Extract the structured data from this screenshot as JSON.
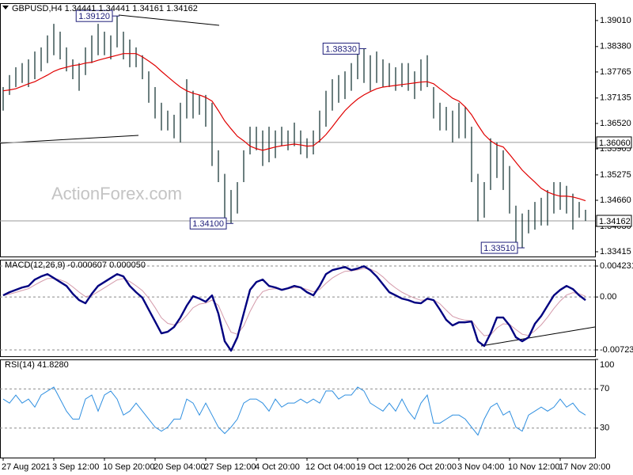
{
  "chart_data": [
    {
      "type": "ohlc",
      "title": "GBPUSD,H4 1.34441 1.34441 1.34161 1.34162",
      "watermark": "ActionForex.com",
      "color": "#0b2a2a",
      "categories": [
        "27 Aug 2021",
        null,
        null,
        null,
        null,
        null,
        null,
        null,
        "3 Sep 12:00",
        null,
        null,
        null,
        null,
        null,
        null,
        null,
        "10 Sep 20:00",
        null,
        null,
        null,
        null,
        null,
        null,
        null,
        "20 Sep 04:00",
        null,
        null,
        null,
        null,
        null,
        null,
        null,
        "27 Sep 12:00",
        null,
        null,
        null,
        null,
        null,
        null,
        null,
        "4 Oct 20:00",
        null,
        null,
        null,
        null,
        null,
        null,
        null,
        "12 Oct 04:00",
        null,
        null,
        null,
        null,
        null,
        null,
        null,
        "19 Oct 12:00",
        null,
        null,
        null,
        null,
        null,
        null,
        null,
        "26 Oct 20:00",
        null,
        null,
        null,
        null,
        null,
        null,
        null,
        "3 Nov 04:00",
        null,
        null,
        null,
        null,
        null,
        null,
        null,
        "10 Nov 12:00",
        null,
        null,
        null,
        null,
        null,
        null,
        null,
        "17 Nov 20:00",
        null,
        null,
        null,
        null
      ],
      "high": [
        1.374,
        1.3769,
        1.3788,
        1.3798,
        1.3807,
        1.3826,
        1.3836,
        1.3865,
        1.3893,
        1.3874,
        1.3836,
        1.3807,
        1.3798,
        1.3836,
        1.3865,
        1.3893,
        1.3874,
        1.3865,
        1.3912,
        1.3874,
        1.3855,
        1.3836,
        1.3817,
        1.3778,
        1.374,
        1.3702,
        1.3683,
        1.3673,
        1.3702,
        1.3759,
        1.3731,
        1.3721,
        1.3721,
        1.3702,
        1.3587,
        1.353,
        1.3491,
        1.351,
        1.3587,
        1.3644,
        1.3644,
        1.3635,
        1.3644,
        1.3635,
        1.3644,
        1.3635,
        1.3654,
        1.3635,
        1.3616,
        1.3635,
        1.3683,
        1.3731,
        1.3759,
        1.3769,
        1.3778,
        1.3798,
        1.3826,
        1.3833,
        1.3817,
        1.3826,
        1.3807,
        1.3798,
        1.3788,
        1.3798,
        1.3798,
        1.3778,
        1.3807,
        1.3817,
        1.374,
        1.3702,
        1.3692,
        1.3683,
        1.3702,
        1.3692,
        1.3644,
        1.353,
        1.351,
        1.3616,
        1.3606,
        1.3587,
        1.3549,
        1.3453,
        1.3434,
        1.3443,
        1.3462,
        1.3472,
        1.3491,
        1.351,
        1.351,
        1.3501,
        1.3482,
        1.3462,
        1.3443
      ],
      "low": [
        1.3683,
        1.3721,
        1.374,
        1.375,
        1.374,
        1.3759,
        1.3778,
        1.3798,
        1.3817,
        1.3807,
        1.3778,
        1.3759,
        1.3731,
        1.3769,
        1.3798,
        1.3817,
        1.3817,
        1.3807,
        1.3836,
        1.3807,
        1.3788,
        1.3788,
        1.3759,
        1.3702,
        1.3664,
        1.3635,
        1.3635,
        1.3616,
        1.3606,
        1.3664,
        1.3664,
        1.3673,
        1.3644,
        1.3549,
        1.351,
        1.3424,
        1.341,
        1.3434,
        1.351,
        1.3577,
        1.3587,
        1.3549,
        1.3558,
        1.3568,
        1.3597,
        1.3587,
        1.3597,
        1.3577,
        1.3568,
        1.3577,
        1.3606,
        1.3644,
        1.3683,
        1.3702,
        1.3711,
        1.3731,
        1.3759,
        1.375,
        1.3731,
        1.375,
        1.374,
        1.374,
        1.3731,
        1.374,
        1.3731,
        1.3711,
        1.3731,
        1.374,
        1.3664,
        1.3635,
        1.3635,
        1.3606,
        1.3616,
        1.3616,
        1.351,
        1.3415,
        1.3424,
        1.3491,
        1.352,
        1.3491,
        1.3434,
        1.3357,
        1.3351,
        1.3386,
        1.3395,
        1.3405,
        1.3405,
        1.3434,
        1.3443,
        1.3434,
        1.3395,
        1.3424,
        1.3416
      ],
      "moving_average": {
        "color": "#e00000",
        "values": [
          1.3731,
          1.3733,
          1.3736,
          1.3742,
          1.3748,
          1.3753,
          1.3761,
          1.3769,
          1.3778,
          1.3784,
          1.3788,
          1.3792,
          1.3794,
          1.3798,
          1.38,
          1.3805,
          1.3809,
          1.3813,
          1.3817,
          1.3821,
          1.3821,
          1.3821,
          1.3813,
          1.3803,
          1.3792,
          1.3778,
          1.3765,
          1.3752,
          1.374,
          1.3731,
          1.3725,
          1.3721,
          1.3715,
          1.3706,
          1.3683,
          1.3658,
          1.3639,
          1.3621,
          1.361,
          1.3597,
          1.3591,
          1.3587,
          1.3591,
          1.3595,
          1.3598,
          1.36,
          1.3602,
          1.36,
          1.3597,
          1.3598,
          1.361,
          1.3625,
          1.3644,
          1.3664,
          1.3683,
          1.3698,
          1.3711,
          1.3721,
          1.3729,
          1.3736,
          1.374,
          1.3742,
          1.3744,
          1.3746,
          1.3748,
          1.375,
          1.3752,
          1.3753,
          1.3748,
          1.3736,
          1.3725,
          1.3713,
          1.3706,
          1.3692,
          1.3673,
          1.3648,
          1.3625,
          1.361,
          1.36,
          1.3595,
          1.3577,
          1.3558,
          1.3539,
          1.3524,
          1.351,
          1.3495,
          1.3486,
          1.348,
          1.3476,
          1.3476,
          1.3474,
          1.347,
          1.3465
        ]
      },
      "ylim": [
        1.333,
        1.3943
      ],
      "yticks": [
        {
          "value": 1.3901,
          "label": "1.39010"
        },
        {
          "value": 1.3838,
          "label": "1.38380"
        },
        1.37765,
        1.37135,
        {
          "value": 1.3652,
          "label": "1.36520"
        },
        1.35905,
        1.35275,
        {
          "value": 1.3466,
          "label": "1.34660"
        },
        {
          "value": 1.3403,
          "label": "1.34030"
        },
        1.33415
      ],
      "levels": [
        {
          "value": 1.3606,
          "label": "1.36060"
        },
        {
          "value": 1.34162,
          "label": "1.34162"
        }
      ],
      "annotations": [
        {
          "value": 1.3912,
          "label": "1.39120"
        },
        {
          "value": 1.3833,
          "label": "1.38330"
        },
        {
          "value": 1.341,
          "label": "1.34100"
        },
        {
          "value": 1.3351,
          "label": "1.33510"
        }
      ]
    },
    {
      "type": "macd",
      "title": "MACD(12,26,9) -0.000607 0.000050",
      "grid": true,
      "ylim": [
        -0.0081,
        0.0051
      ],
      "yticks": [
        0.004231,
        {
          "value": 0,
          "label": "0.00"
        },
        -0.00723
      ],
      "macd": {
        "color": "#000080",
        "values": [
          0.00022,
          0.00065,
          0.00097,
          0.0013,
          0.00151,
          0.00238,
          0.00281,
          0.00313,
          0.00259,
          0.00205,
          0.00151,
          0.00043,
          -0.00043,
          -0.00086,
          0.00043,
          0.00151,
          0.00205,
          0.00259,
          0.00313,
          0.00281,
          0.00151,
          0.00065,
          -0.00011,
          -0.00173,
          -0.00335,
          -0.00497,
          -0.00475,
          -0.0041,
          -0.00281,
          -0.00119,
          0.00011,
          -0.00022,
          -0.00065,
          0.00022,
          -0.00227,
          -0.00605,
          -0.00734,
          -0.00551,
          -0.00227,
          0.00097,
          0.00205,
          0.00238,
          0.00151,
          0.0013,
          0.00097,
          0.00119,
          0.00151,
          0.0013,
          0.00065,
          0.00022,
          0.00151,
          0.00313,
          0.00367,
          0.00389,
          0.0041,
          0.00367,
          0.00389,
          0.00421,
          0.00367,
          0.00281,
          0.00173,
          0.00065,
          0.00022,
          -0.00022,
          -0.00043,
          -0.00076,
          -0.00086,
          -0.00022,
          -0.00043,
          -0.00173,
          -0.00313,
          -0.00389,
          -0.00346,
          -0.00346,
          -0.00335,
          -0.00605,
          -0.0067,
          -0.00497,
          -0.00281,
          -0.00281,
          -0.00389,
          -0.00551,
          -0.00605,
          -0.00551,
          -0.00367,
          -0.00259,
          -0.00119,
          0.00022,
          0.00097,
          0.00151,
          0.00108,
          0.00022,
          -0.00043
        ]
      },
      "signal": {
        "color": "#d49aaa",
        "values": [
          0.00022,
          0.00039,
          0.00062,
          0.00089,
          0.00114,
          0.00164,
          0.00211,
          0.00252,
          0.00255,
          0.00235,
          0.00201,
          0.00138,
          0.00066,
          5e-05,
          0.0002,
          0.00072,
          0.00125,
          0.00179,
          0.00233,
          0.00252,
          0.00212,
          0.00153,
          0.00087,
          -0.00017,
          -0.00144,
          -0.00285,
          -0.00361,
          -0.00381,
          -0.00341,
          -0.00252,
          -0.00147,
          -0.00097,
          -0.00084,
          -0.00042,
          -0.00116,
          -0.00312,
          -0.00481,
          -0.00509,
          -0.00396,
          -0.00199,
          -0.00037,
          0.00073,
          0.00104,
          0.00114,
          0.00107,
          0.00112,
          0.00128,
          0.00129,
          0.00103,
          0.00071,
          0.00103,
          0.00187,
          0.00259,
          0.00311,
          0.00351,
          0.00357,
          0.0037,
          0.0039,
          0.00381,
          0.00341,
          0.00274,
          0.0019,
          0.00123,
          0.00065,
          0.00022,
          -0.00017,
          -0.00045,
          -0.00036,
          -0.00039,
          -0.00093,
          -0.00181,
          -0.00264,
          -0.00297,
          -0.00317,
          -0.00324,
          -0.00436,
          -0.0053,
          -0.00517,
          -0.00423,
          -0.00366,
          -0.00375,
          -0.00445,
          -0.00509,
          -0.00526,
          -0.00462,
          -0.00381,
          -0.00276,
          -0.00157,
          -0.00055,
          0.00027,
          0.00059,
          0.00044,
          9e-05
        ]
      }
    },
    {
      "type": "line",
      "title": "RSI(14) 41.8280",
      "grid": true,
      "color": "#2f8fe0",
      "ylim": [
        0,
        100
      ],
      "yticks": [
        100,
        70,
        30
      ],
      "values": [
        59.6,
        55.5,
        63.7,
        55.5,
        59.6,
        51.4,
        63.7,
        67.8,
        71.8,
        59.6,
        47.3,
        39.2,
        39.2,
        59.6,
        63.7,
        47.3,
        63.7,
        67.8,
        59.6,
        43.3,
        47.3,
        55.5,
        47.3,
        39.2,
        31,
        26.9,
        31,
        39.2,
        39.2,
        59.6,
        55.5,
        43.3,
        55.5,
        43.3,
        31,
        24.5,
        31,
        39.2,
        55.5,
        59.6,
        59.6,
        55.5,
        47.3,
        59.6,
        51.4,
        55.5,
        55.5,
        59.6,
        55.5,
        59.6,
        55.5,
        67.8,
        67.8,
        59.6,
        63.7,
        63.7,
        71.8,
        67.8,
        55.5,
        51.4,
        47.3,
        55.5,
        47.3,
        59.6,
        47.3,
        39.2,
        55.5,
        63.7,
        35.1,
        35.1,
        39.2,
        43.3,
        43.3,
        39.2,
        31,
        22.9,
        39.2,
        51.4,
        55.5,
        43.3,
        47.3,
        31,
        26.9,
        43.3,
        47.3,
        51.4,
        47.3,
        51.4,
        59.6,
        51.4,
        55.5,
        47.3,
        43.3
      ]
    }
  ]
}
